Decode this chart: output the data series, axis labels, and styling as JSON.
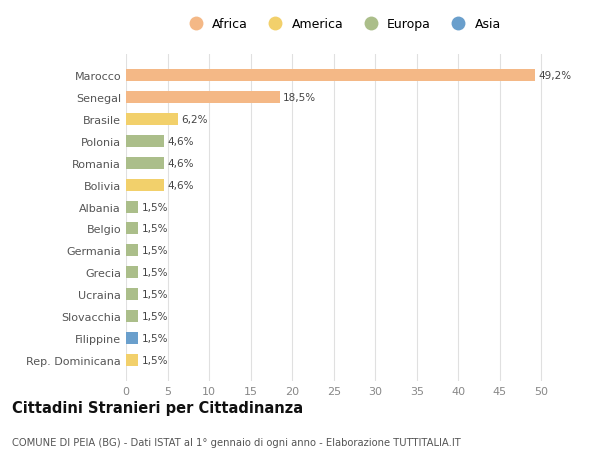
{
  "countries": [
    "Marocco",
    "Senegal",
    "Brasile",
    "Polonia",
    "Romania",
    "Bolivia",
    "Albania",
    "Belgio",
    "Germania",
    "Grecia",
    "Ucraina",
    "Slovacchia",
    "Filippine",
    "Rep. Dominicana"
  ],
  "values": [
    49.2,
    18.5,
    6.2,
    4.6,
    4.6,
    4.6,
    1.5,
    1.5,
    1.5,
    1.5,
    1.5,
    1.5,
    1.5,
    1.5
  ],
  "labels": [
    "49,2%",
    "18,5%",
    "6,2%",
    "4,6%",
    "4,6%",
    "4,6%",
    "1,5%",
    "1,5%",
    "1,5%",
    "1,5%",
    "1,5%",
    "1,5%",
    "1,5%",
    "1,5%"
  ],
  "regions": [
    "Africa",
    "Africa",
    "America",
    "Europa",
    "Europa",
    "America",
    "Europa",
    "Europa",
    "Europa",
    "Europa",
    "Europa",
    "Europa",
    "Asia",
    "America"
  ],
  "colors": {
    "Africa": "#F4B886",
    "America": "#F2D06B",
    "Europa": "#ABBE8A",
    "Asia": "#6A9FCC"
  },
  "legend_order": [
    "Africa",
    "America",
    "Europa",
    "Asia"
  ],
  "title": "Cittadini Stranieri per Cittadinanza",
  "subtitle": "COMUNE DI PEIA (BG) - Dati ISTAT al 1° gennaio di ogni anno - Elaborazione TUTTITALIA.IT",
  "xlim": [
    0,
    52
  ],
  "xticks": [
    0,
    5,
    10,
    15,
    20,
    25,
    30,
    35,
    40,
    45,
    50
  ],
  "background_color": "#ffffff",
  "grid_color": "#e0e0e0"
}
